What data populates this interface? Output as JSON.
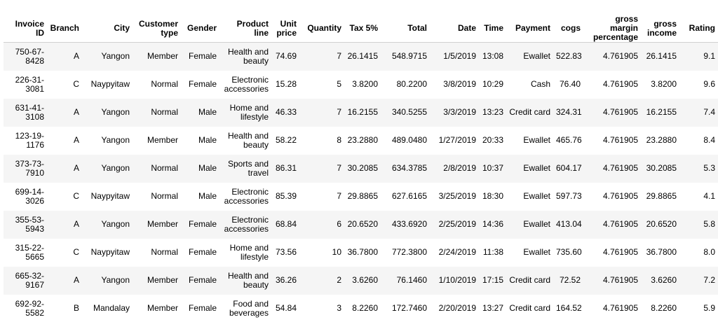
{
  "table": {
    "columns": [
      "Invoice ID",
      "Branch",
      "City",
      "Customer type",
      "Gender",
      "Product line",
      "Unit price",
      "Quantity",
      "Tax 5%",
      "Total",
      "Date",
      "Time",
      "Payment",
      "cogs",
      "gross margin percentage",
      "gross income",
      "Rating"
    ],
    "rows": [
      [
        "750-67-8428",
        "A",
        "Yangon",
        "Member",
        "Female",
        "Health and beauty",
        "74.69",
        "7",
        "26.1415",
        "548.9715",
        "1/5/2019",
        "13:08",
        "Ewallet",
        "522.83",
        "4.761905",
        "26.1415",
        "9.1"
      ],
      [
        "226-31-3081",
        "C",
        "Naypyitaw",
        "Normal",
        "Female",
        "Electronic accessories",
        "15.28",
        "5",
        "3.8200",
        "80.2200",
        "3/8/2019",
        "10:29",
        "Cash",
        "76.40",
        "4.761905",
        "3.8200",
        "9.6"
      ],
      [
        "631-41-3108",
        "A",
        "Yangon",
        "Normal",
        "Male",
        "Home and lifestyle",
        "46.33",
        "7",
        "16.2155",
        "340.5255",
        "3/3/2019",
        "13:23",
        "Credit card",
        "324.31",
        "4.761905",
        "16.2155",
        "7.4"
      ],
      [
        "123-19-1176",
        "A",
        "Yangon",
        "Member",
        "Male",
        "Health and beauty",
        "58.22",
        "8",
        "23.2880",
        "489.0480",
        "1/27/2019",
        "20:33",
        "Ewallet",
        "465.76",
        "4.761905",
        "23.2880",
        "8.4"
      ],
      [
        "373-73-7910",
        "A",
        "Yangon",
        "Normal",
        "Male",
        "Sports and travel",
        "86.31",
        "7",
        "30.2085",
        "634.3785",
        "2/8/2019",
        "10:37",
        "Ewallet",
        "604.17",
        "4.761905",
        "30.2085",
        "5.3"
      ],
      [
        "699-14-3026",
        "C",
        "Naypyitaw",
        "Normal",
        "Male",
        "Electronic accessories",
        "85.39",
        "7",
        "29.8865",
        "627.6165",
        "3/25/2019",
        "18:30",
        "Ewallet",
        "597.73",
        "4.761905",
        "29.8865",
        "4.1"
      ],
      [
        "355-53-5943",
        "A",
        "Yangon",
        "Member",
        "Female",
        "Electronic accessories",
        "68.84",
        "6",
        "20.6520",
        "433.6920",
        "2/25/2019",
        "14:36",
        "Ewallet",
        "413.04",
        "4.761905",
        "20.6520",
        "5.8"
      ],
      [
        "315-22-5665",
        "C",
        "Naypyitaw",
        "Normal",
        "Female",
        "Home and lifestyle",
        "73.56",
        "10",
        "36.7800",
        "772.3800",
        "2/24/2019",
        "11:38",
        "Ewallet",
        "735.60",
        "4.761905",
        "36.7800",
        "8.0"
      ],
      [
        "665-32-9167",
        "A",
        "Yangon",
        "Member",
        "Female",
        "Health and beauty",
        "36.26",
        "2",
        "3.6260",
        "76.1460",
        "1/10/2019",
        "17:15",
        "Credit card",
        "72.52",
        "4.761905",
        "3.6260",
        "7.2"
      ],
      [
        "692-92-5582",
        "B",
        "Mandalay",
        "Member",
        "Female",
        "Food and beverages",
        "54.84",
        "3",
        "8.2260",
        "172.7460",
        "2/20/2019",
        "13:27",
        "Credit card",
        "164.52",
        "4.761905",
        "8.2260",
        "5.9"
      ]
    ]
  }
}
